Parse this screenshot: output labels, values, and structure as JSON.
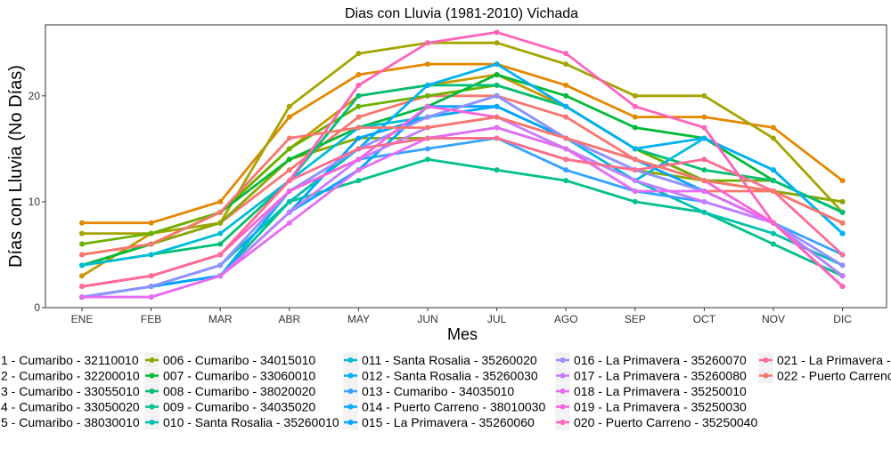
{
  "chart_data": {
    "type": "line",
    "title": "Dias con Lluvia (1981-2010)  Vichada",
    "xlabel": "Mes",
    "ylabel": "Días con Lluvia (No Días)",
    "categories": [
      "ENE",
      "FEB",
      "MAR",
      "ABR",
      "MAY",
      "JUN",
      "JUL",
      "AGO",
      "SEP",
      "OCT",
      "NOV",
      "DIC"
    ],
    "y_ticks": [
      0,
      10,
      20
    ],
    "ylim": [
      0,
      26.7
    ],
    "grid": false,
    "legend_position": "bottom",
    "series": [
      {
        "name": "1 - Cumaribo - 32110010",
        "color": "#F8766D",
        "values": [
          5,
          6,
          8,
          13,
          18,
          20,
          20,
          18,
          14,
          11,
          11,
          8
        ]
      },
      {
        "name": "2 - Cumaribo - 32200010",
        "color": "#E58700",
        "values": [
          8,
          8,
          10,
          18,
          22,
          23,
          23,
          21,
          18,
          18,
          17,
          12
        ]
      },
      {
        "name": "3 - Cumaribo - 33055010",
        "color": "#C99800",
        "values": [
          3,
          7,
          9,
          15,
          20,
          21,
          22,
          19,
          15,
          12,
          11,
          10
        ]
      },
      {
        "name": "4 - Cumaribo - 33050020",
        "color": "#A3A500",
        "values": [
          7,
          7,
          8,
          19,
          24,
          25,
          25,
          23,
          20,
          20,
          16,
          9
        ]
      },
      {
        "name": "5 - Cumaribo - 38030010",
        "color": "#6BB100",
        "values": [
          6,
          7,
          9,
          15,
          19,
          20,
          21,
          19,
          15,
          12,
          12,
          9
        ]
      },
      {
        "name": "006 - Cumaribo - 34015010",
        "color": "#8AA800",
        "values": [
          4,
          6,
          8,
          14,
          16,
          16,
          16,
          14,
          13,
          12,
          11,
          10
        ]
      },
      {
        "name": "007 - Cumaribo - 33060010",
        "color": "#00BA38",
        "values": [
          4,
          6,
          9,
          14,
          17,
          19,
          22,
          20,
          17,
          16,
          12,
          9
        ]
      },
      {
        "name": "008 - Cumaribo - 38020020",
        "color": "#00BF74",
        "values": [
          4,
          5,
          6,
          12,
          20,
          21,
          21,
          19,
          15,
          13,
          12,
          9
        ]
      },
      {
        "name": "009 - Cumaribo - 34035020",
        "color": "#00C08B",
        "values": [
          1,
          2,
          3,
          10,
          12,
          14,
          13,
          12,
          10,
          9,
          6,
          3
        ]
      },
      {
        "name": "010 - Santa Rosalia - 35260010",
        "color": "#00C0AF",
        "values": [
          1,
          2,
          4,
          10,
          15,
          16,
          17,
          15,
          12,
          9,
          7,
          4
        ]
      },
      {
        "name": "011 - Santa Rosalia - 35260020",
        "color": "#00BCD8",
        "values": [
          4,
          5,
          7,
          12,
          17,
          18,
          20,
          16,
          12,
          16,
          13,
          7
        ]
      },
      {
        "name": "012 - Santa Rosalia - 35260030",
        "color": "#00B0F6",
        "values": [
          1,
          2,
          3,
          11,
          15,
          21,
          23,
          19,
          15,
          16,
          13,
          7
        ]
      },
      {
        "name": "013 - Cumaribo - 34035010",
        "color": "#35A2FF",
        "values": [
          1,
          2,
          4,
          11,
          14,
          15,
          16,
          13,
          11,
          10,
          8,
          5
        ]
      },
      {
        "name": "014 - Puerto Carreno - 38010030",
        "color": "#00A9FF",
        "values": [
          1,
          2,
          3,
          9,
          13,
          19,
          19,
          16,
          13,
          11,
          8,
          3
        ]
      },
      {
        "name": "015 - La Primavera - 35260060",
        "color": "#00A5FF",
        "values": [
          1,
          2,
          3,
          9,
          16,
          18,
          19,
          16,
          14,
          11,
          8,
          3
        ]
      },
      {
        "name": "016 - La Primavera - 35260070",
        "color": "#9590FF",
        "values": [
          1,
          2,
          4,
          11,
          15,
          18,
          20,
          16,
          13,
          11,
          8,
          4
        ]
      },
      {
        "name": "017 - La Primavera - 35260080",
        "color": "#C77CFF",
        "values": [
          1,
          1,
          3,
          9,
          14,
          17,
          18,
          15,
          12,
          10,
          8,
          3
        ]
      },
      {
        "name": "018 - La Primavera - 35250010",
        "color": "#E76BF3",
        "values": [
          1,
          1,
          3,
          8,
          13,
          16,
          17,
          15,
          11,
          11,
          8,
          2
        ]
      },
      {
        "name": "019 - La Primavera - 35250030",
        "color": "#FA62DB",
        "values": [
          2,
          3,
          5,
          11,
          14,
          19,
          18,
          16,
          14,
          12,
          8,
          2
        ]
      },
      {
        "name": "020 - Puerto Carreno - 35250040",
        "color": "#FF62BC",
        "values": [
          2,
          3,
          5,
          12,
          21,
          25,
          26,
          24,
          19,
          17,
          8,
          2
        ]
      },
      {
        "name": "021 - La Primavera -",
        "color": "#FF6C91",
        "values": [
          2,
          3,
          5,
          12,
          15,
          16,
          16,
          14,
          13,
          14,
          11,
          5
        ]
      },
      {
        "name": "022 - Puerto Carreno",
        "color": "#F8766D",
        "values": [
          5,
          6,
          9,
          16,
          17,
          17,
          18,
          16,
          14,
          12,
          11,
          8
        ]
      }
    ]
  }
}
